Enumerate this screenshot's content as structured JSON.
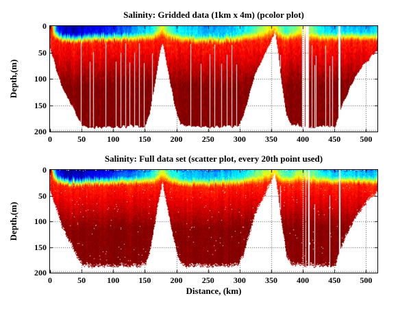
{
  "figure": {
    "background": "#ffffff",
    "axis_color": "#000000",
    "grid_style": "dotted"
  },
  "chart_data": [
    {
      "type": "heatmap",
      "plot_kind": "pcolor",
      "title": "Salinity: Gridded data (1km x 4m) (pcolor plot)",
      "xlabel": "",
      "ylabel": "Depth,(m)",
      "xlim": [
        0,
        518
      ],
      "ylim": [
        0,
        200
      ],
      "y_reversed": true,
      "xticks": [
        0,
        50,
        100,
        150,
        200,
        250,
        300,
        350,
        400,
        450,
        500
      ],
      "yticks": [
        0,
        50,
        100,
        150,
        200
      ],
      "grid": "on",
      "colormap": "jet",
      "colormap_range_note": "dark blue = low salinity surface water, dark red = high salinity deep water",
      "seed": 7,
      "field": {
        "km": [
          0,
          3,
          6,
          10,
          18,
          30,
          45,
          52,
          60,
          90,
          120,
          145,
          152,
          158,
          165,
          172,
          178,
          183,
          190,
          198,
          206,
          215,
          250,
          285,
          298,
          306,
          315,
          325,
          337,
          347,
          356,
          361,
          367,
          374,
          382,
          392,
          400,
          412,
          430,
          452,
          458,
          463,
          472,
          483,
          494,
          505,
          518
        ],
        "bottom_m": [
          42,
          52,
          64,
          82,
          110,
          140,
          176,
          188,
          190,
          190,
          190,
          189,
          186,
          165,
          115,
          62,
          28,
          58,
          105,
          152,
          184,
          190,
          190,
          190,
          188,
          170,
          132,
          88,
          60,
          34,
          10,
          48,
          110,
          168,
          188,
          186,
          190,
          191,
          190,
          190,
          160,
          148,
          122,
          96,
          76,
          62,
          44
        ],
        "surface_salinity_index": [
          0.92,
          0.85,
          0.5,
          0.2,
          0.05,
          0.02,
          0.04,
          0.05,
          0.08,
          0.12,
          0.2,
          0.27,
          0.3,
          0.33,
          0.4,
          0.5,
          0.6,
          0.5,
          0.42,
          0.36,
          0.33,
          0.32,
          0.27,
          0.3,
          0.33,
          0.35,
          0.4,
          0.46,
          0.54,
          0.6,
          0.62,
          0.55,
          0.46,
          0.42,
          0.44,
          0.52,
          0.58,
          0.5,
          0.36,
          0.3,
          0.3,
          0.31,
          0.33,
          0.31,
          0.28,
          0.3,
          0.32
        ],
        "halocline_m": [
          2,
          3,
          5,
          8,
          11,
          13,
          13,
          13,
          12,
          12,
          11,
          10,
          10,
          10,
          9,
          6,
          3,
          6,
          9,
          11,
          12,
          13,
          14,
          13,
          12,
          11,
          10,
          9,
          8,
          5,
          2,
          6,
          8,
          10,
          9,
          7,
          7,
          9,
          10,
          10,
          9,
          9,
          9,
          9,
          10,
          10,
          10
        ],
        "deep_salinity_index": 1.0,
        "bottom_offset_m": 0
      },
      "data_gaps_km": [
        [
          398.5,
          403.2
        ],
        [
          404.6,
          410.0
        ],
        [
          455.8,
          459.4
        ]
      ],
      "missing_profile_lines_km": [
        49,
        63,
        68,
        88,
        104,
        112,
        119,
        126,
        133,
        141,
        148,
        162,
        222,
        238,
        252,
        260,
        271,
        280,
        287,
        295,
        364,
        414,
        418,
        421,
        436,
        442,
        446
      ]
    },
    {
      "type": "heatmap",
      "plot_kind": "scatter",
      "title": "Salinity: Full data set (scatter plot, every 20th point used)",
      "xlabel": "Distance, (km)",
      "ylabel": "Depth,(m)",
      "xlim": [
        0,
        518
      ],
      "ylim": [
        0,
        200
      ],
      "y_reversed": true,
      "xticks": [
        0,
        50,
        100,
        150,
        200,
        250,
        300,
        350,
        400,
        450,
        500
      ],
      "yticks": [
        0,
        50,
        100,
        150,
        200
      ],
      "grid": "on",
      "colormap": "jet",
      "colormap_range_note": "dark blue = low salinity surface water, dark red = high salinity deep water",
      "seed": 13,
      "field": {
        "km": [
          0,
          3,
          6,
          10,
          18,
          30,
          45,
          52,
          60,
          90,
          120,
          145,
          152,
          158,
          165,
          172,
          178,
          183,
          190,
          198,
          206,
          215,
          250,
          285,
          298,
          306,
          315,
          325,
          337,
          347,
          356,
          361,
          367,
          374,
          382,
          392,
          400,
          412,
          430,
          452,
          458,
          463,
          472,
          483,
          494,
          505,
          518
        ],
        "bottom_m": [
          42,
          52,
          64,
          82,
          110,
          140,
          176,
          188,
          190,
          190,
          190,
          189,
          186,
          165,
          115,
          62,
          28,
          58,
          105,
          152,
          184,
          190,
          190,
          190,
          188,
          170,
          132,
          88,
          60,
          34,
          10,
          48,
          110,
          168,
          188,
          186,
          190,
          191,
          190,
          190,
          160,
          148,
          122,
          96,
          76,
          62,
          44
        ],
        "surface_salinity_index": [
          0.92,
          0.85,
          0.5,
          0.2,
          0.05,
          0.02,
          0.04,
          0.05,
          0.08,
          0.12,
          0.2,
          0.27,
          0.3,
          0.33,
          0.4,
          0.5,
          0.6,
          0.5,
          0.42,
          0.36,
          0.33,
          0.32,
          0.27,
          0.3,
          0.33,
          0.35,
          0.4,
          0.46,
          0.54,
          0.6,
          0.62,
          0.55,
          0.46,
          0.42,
          0.44,
          0.52,
          0.58,
          0.5,
          0.36,
          0.3,
          0.3,
          0.31,
          0.33,
          0.31,
          0.28,
          0.3,
          0.32
        ],
        "halocline_m": [
          2,
          3,
          5,
          8,
          11,
          13,
          13,
          13,
          12,
          12,
          11,
          10,
          10,
          10,
          9,
          6,
          3,
          6,
          9,
          11,
          12,
          13,
          14,
          13,
          12,
          11,
          10,
          9,
          8,
          5,
          2,
          6,
          8,
          10,
          9,
          7,
          7,
          9,
          10,
          10,
          9,
          9,
          9,
          9,
          10,
          10,
          10
        ],
        "deep_salinity_index": 1.0,
        "bottom_offset_m": -3
      },
      "data_gaps_km": [
        [
          399.5,
          401.0
        ],
        [
          404.0,
          405.5
        ],
        [
          409.0,
          410.5
        ],
        [
          457.0,
          459.0
        ]
      ],
      "missing_profile_lines_km": [
        364,
        418,
        442
      ]
    }
  ]
}
